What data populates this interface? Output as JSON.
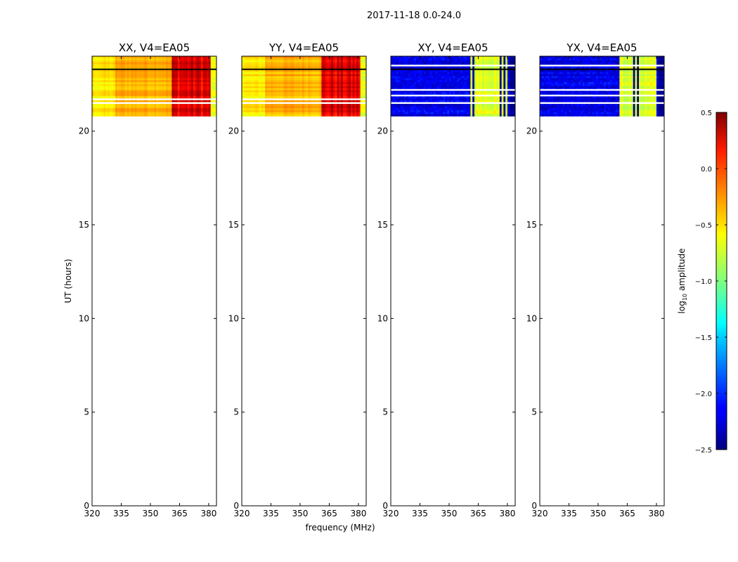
{
  "chart_data": {
    "type": "heatmap",
    "suptitle": "2017-11-18 0.0-24.0",
    "xlabel": "frequency (MHz)",
    "ylabel": "UT (hours)",
    "xlim": [
      320,
      384
    ],
    "ylim": [
      0,
      24
    ],
    "x_ticks": [
      320,
      335,
      350,
      365,
      380
    ],
    "x_tick_labels": [
      "320",
      "335",
      "350",
      "365",
      "380"
    ],
    "y_ticks": [
      0,
      5,
      10,
      15,
      20
    ],
    "y_tick_labels": [
      "0",
      "5",
      "10",
      "15",
      "20"
    ],
    "data_ut_range": [
      20.8,
      24.0
    ],
    "panels": [
      {
        "title": "XX, V4=EA05",
        "level": "high",
        "rfi_band_mhz": [
          361,
          382
        ],
        "dark_lines_ut": [
          23.3
        ],
        "white_lines_ut": [
          21.7,
          21.5
        ]
      },
      {
        "title": "YY, V4=EA05",
        "level": "high",
        "rfi_band_mhz": [
          361,
          382
        ],
        "dark_lines_ut": [
          23.3
        ],
        "white_lines_ut": [
          21.7,
          21.5
        ]
      },
      {
        "title": "XY, V4=EA05",
        "level": "low",
        "rfi_band_mhz": [
          361,
          380
        ],
        "dark_lines_ut": [
          23.3
        ],
        "white_lines_ut": [
          23.5,
          22.2,
          21.9,
          21.5
        ]
      },
      {
        "title": "YX, V4=EA05",
        "level": "low",
        "rfi_band_mhz": [
          361,
          380
        ],
        "dark_lines_ut": [
          23.3
        ],
        "white_lines_ut": [
          23.5,
          22.2,
          21.9,
          21.5
        ]
      }
    ],
    "colorbar": {
      "label": "log10 amplitude",
      "label_main": "log",
      "label_sub": "10",
      "label_rest": " amplitude",
      "range": [
        -2.5,
        0.5
      ],
      "ticks": [
        0.5,
        0.0,
        -0.5,
        -1.0,
        -1.5,
        -2.0,
        -2.5
      ],
      "tick_labels": [
        "0.5",
        "0.0",
        "−0.5",
        "−1.0",
        "−1.5",
        "−2.0",
        "−2.5"
      ],
      "colormap": "jet"
    }
  }
}
